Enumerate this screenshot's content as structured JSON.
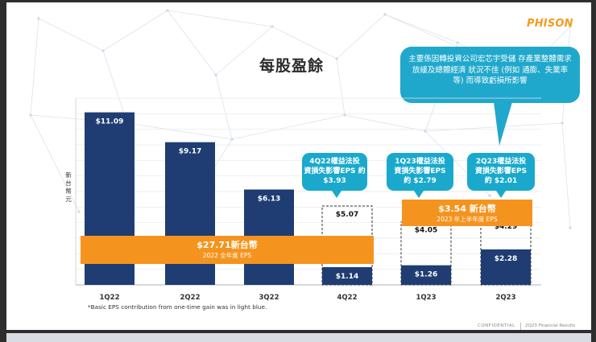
{
  "brand": {
    "logo_text": "PHISON",
    "accent": "#f39c1f"
  },
  "slide": {
    "title": "每股盈餘",
    "top_callout": "主要係因轉投資公司宏芯宇受儲 存產業整體需求放緩及總體經濟 狀況不佳 (例如 通膨、失業率等) 而導致虧損所影響",
    "footnote": "*Basic EPS contribution from one-time gain was in light blue.",
    "footer_confidential": "CONFIDENTIAL",
    "footer_report": "2Q23 Financial Results"
  },
  "chart_data": {
    "type": "bar",
    "ylabel": "新台幣 元",
    "categories": [
      "1Q22",
      "2Q22",
      "3Q22",
      "4Q22",
      "1Q23",
      "2Q23"
    ],
    "values": [
      11.09,
      9.17,
      6.13,
      1.14,
      1.26,
      2.28
    ],
    "value_labels": [
      "$11.09",
      "$9.17",
      "$6.13",
      "$1.14",
      "$1.26",
      "$2.28"
    ],
    "pre_loss_values": [
      null,
      null,
      null,
      5.07,
      4.05,
      4.29
    ],
    "pre_loss_labels": [
      "",
      "",
      "",
      "$5.07",
      "$4.05",
      "$4.29"
    ],
    "ylim": [
      0,
      12
    ],
    "bar_color": "#1f3d73",
    "dashed_outline_color": "#333333",
    "loss_callouts": [
      {
        "category": "4Q22",
        "lines": [
          "4Q22權益法投",
          "資損失影響EPS 約",
          "$3.93"
        ]
      },
      {
        "category": "1Q23",
        "lines": [
          "1Q23權益法投",
          "資損失影響EPS",
          "約 $2.79"
        ]
      },
      {
        "category": "2Q23",
        "lines": [
          "2Q23權益法投",
          "資損失影響EPS",
          "約 $2.01"
        ]
      }
    ],
    "annual_bands": [
      {
        "amount": "$27.71新台幣",
        "caption": "2022 全年度 EPS",
        "color": "#f4941e"
      },
      {
        "amount": "$3.54 新台幣",
        "caption": "2023 年上半年度 EPS",
        "color": "#f4941e"
      }
    ],
    "grid": true
  }
}
